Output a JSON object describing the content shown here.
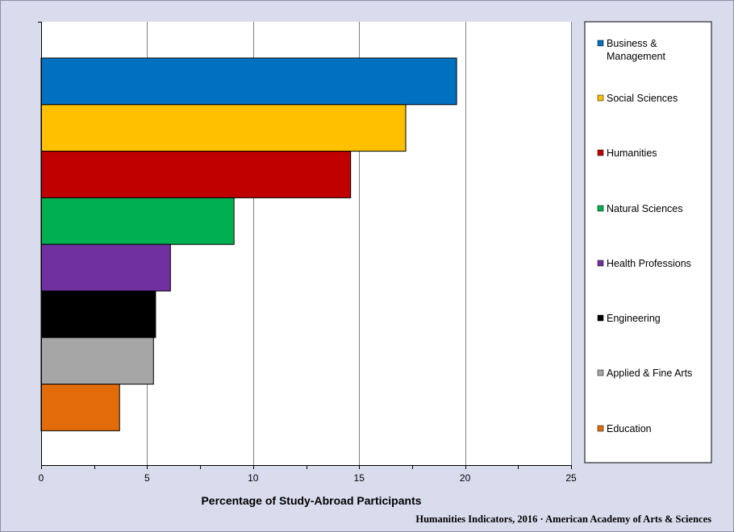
{
  "chart_data": {
    "type": "bar",
    "orientation": "horizontal",
    "categories": [
      "Business & Management",
      "Social Sciences",
      "Humanities",
      "Natural Sciences",
      "Health Professions",
      "Engineering",
      "Applied & Fine Arts",
      "Education"
    ],
    "legend_lines": [
      [
        "Business &",
        "Management"
      ],
      [
        "Social Sciences"
      ],
      [
        "Humanities"
      ],
      [
        "Natural Sciences"
      ],
      [
        "Health Professions"
      ],
      [
        "Engineering"
      ],
      [
        "Applied & Fine Arts"
      ],
      [
        "Education"
      ]
    ],
    "values": [
      19.6,
      17.2,
      14.6,
      9.1,
      6.1,
      5.4,
      5.3,
      3.7
    ],
    "colors": [
      "#0070c0",
      "#ffc000",
      "#c00000",
      "#00b050",
      "#7030a0",
      "#000000",
      "#a6a6a6",
      "#e36c0a"
    ],
    "xlabel": "Percentage of Study-Abroad Participants",
    "xlim": [
      0,
      25
    ],
    "xticks": [
      0,
      5,
      10,
      15,
      20,
      25
    ],
    "grid": true,
    "legend_position": "right",
    "source": "Humanities Indicators, 2016 · American Academy of Arts & Sciences"
  }
}
